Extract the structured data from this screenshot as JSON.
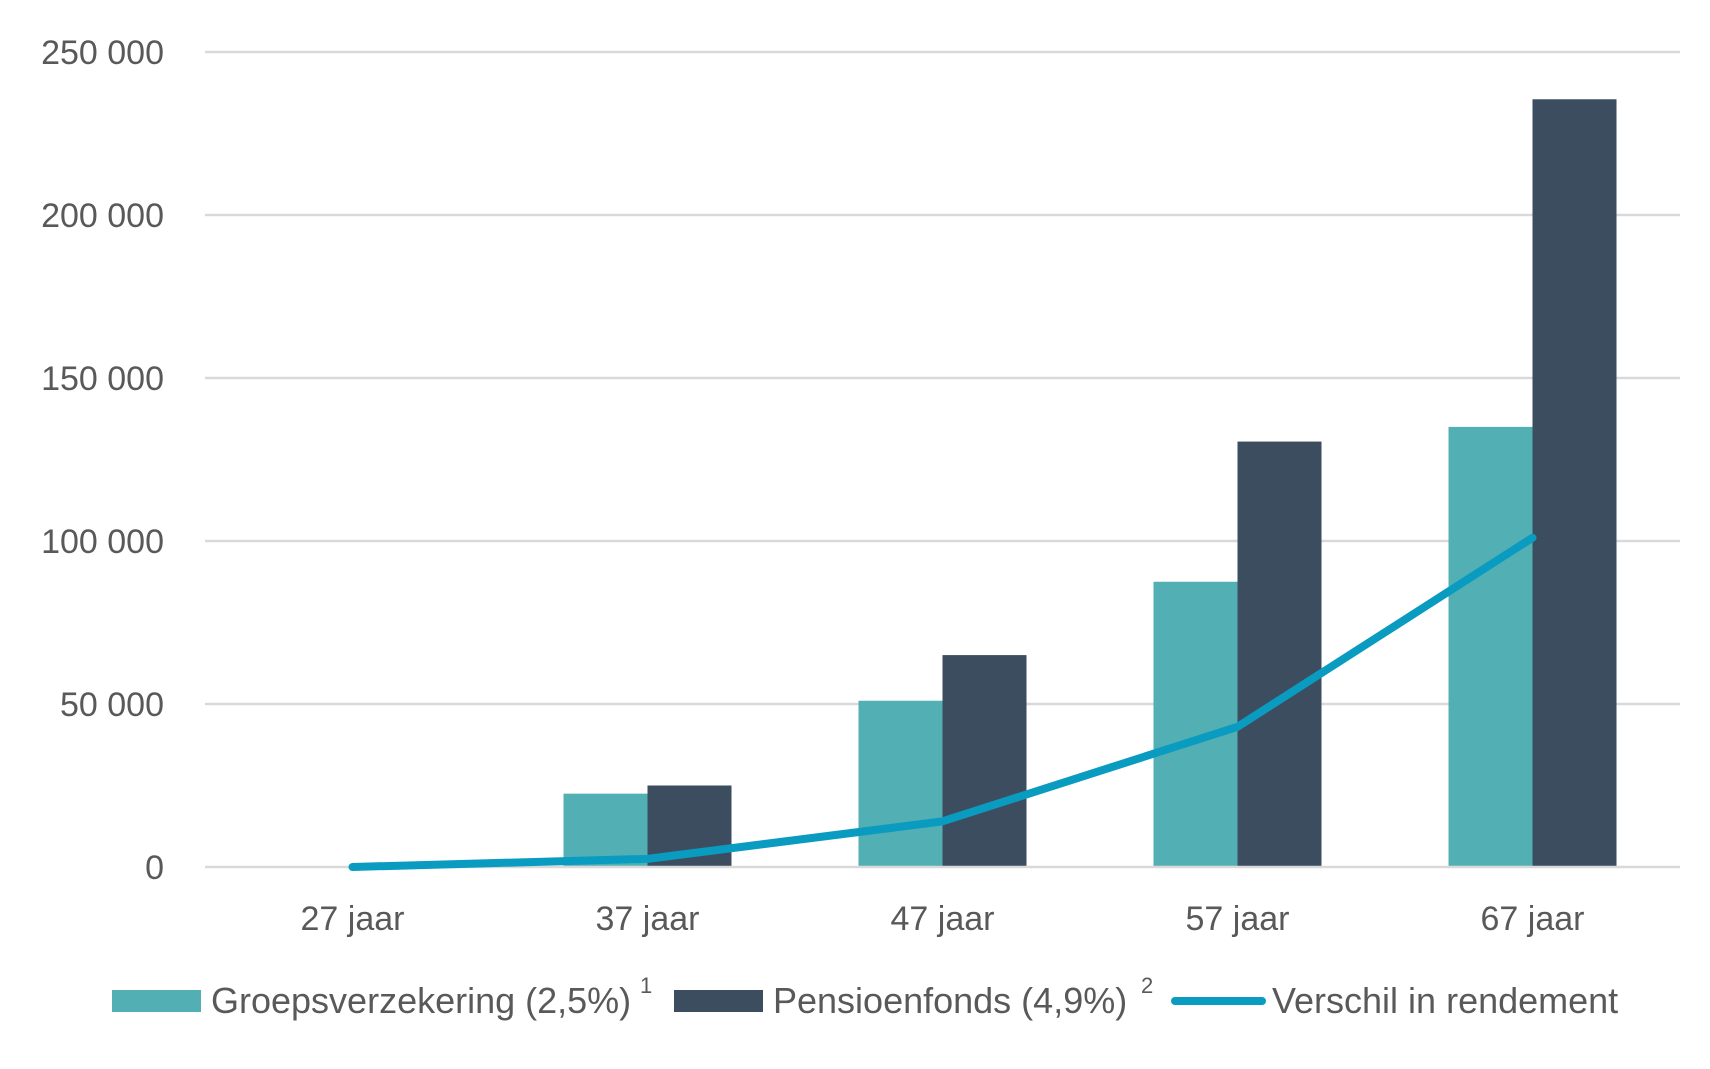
{
  "chart_data": {
    "type": "bar",
    "categories": [
      "27 jaar",
      "37 jaar",
      "47 jaar",
      "57 jaar",
      "67 jaar"
    ],
    "series": [
      {
        "name": "Groepsverzekering (2,5%)",
        "footnote": "1",
        "type": "bar",
        "color": "#52b0b4",
        "values": [
          0,
          22500,
          51000,
          87500,
          135000
        ]
      },
      {
        "name": "Pensioenfonds (4,9%)",
        "footnote": "2",
        "type": "bar",
        "color": "#3b4d5e",
        "values": [
          0,
          25000,
          65000,
          130500,
          235500
        ]
      },
      {
        "name": "Verschil in rendement",
        "type": "line",
        "color": "#0a9bc0",
        "values": [
          0,
          2500,
          14000,
          43000,
          101000
        ]
      }
    ],
    "ylim": [
      0,
      250000
    ],
    "yticks": [
      0,
      50000,
      100000,
      150000,
      200000,
      250000
    ],
    "ytick_labels": [
      "0",
      "50 000",
      "100 000",
      "150 000",
      "200 000",
      "250 000"
    ],
    "grid": true,
    "gridline_color": "#d9d9d9",
    "legend_position": "bottom"
  }
}
